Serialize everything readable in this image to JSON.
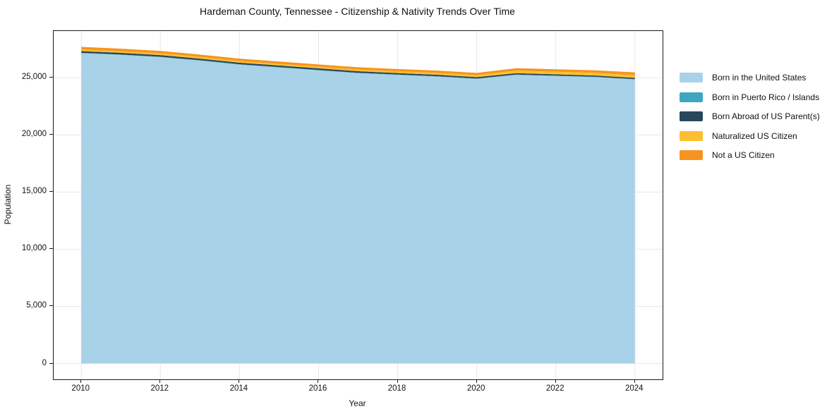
{
  "chart_data": {
    "type": "area",
    "stacked": true,
    "title": "Hardeman County, Tennessee - Citizenship & Nativity Trends Over Time",
    "xlabel": "Year",
    "ylabel": "Population",
    "x": [
      2010,
      2011,
      2012,
      2013,
      2014,
      2015,
      2016,
      2017,
      2018,
      2019,
      2020,
      2021,
      2022,
      2023,
      2024
    ],
    "series": [
      {
        "name": "Born in the United States",
        "color": "#a8d2e8",
        "values": [
          27150,
          27000,
          26800,
          26500,
          26150,
          25900,
          25650,
          25400,
          25250,
          25100,
          24900,
          25250,
          25150,
          25050,
          24850
        ]
      },
      {
        "name": "Born in Puerto Rico / Islands",
        "color": "#3da6c2",
        "values": [
          30,
          30,
          30,
          30,
          30,
          30,
          30,
          30,
          30,
          30,
          30,
          30,
          30,
          30,
          30
        ]
      },
      {
        "name": "Born Abroad of US Parent(s)",
        "color": "#29475c",
        "values": [
          150,
          150,
          150,
          140,
          140,
          140,
          140,
          140,
          130,
          130,
          120,
          120,
          120,
          110,
          110
        ]
      },
      {
        "name": "Naturalized US Citizen",
        "color": "#fcc02e",
        "values": [
          140,
          140,
          150,
          150,
          140,
          140,
          140,
          140,
          150,
          160,
          170,
          220,
          220,
          230,
          230
        ]
      },
      {
        "name": "Not a US Citizen",
        "color": "#f7941f",
        "values": [
          230,
          220,
          215,
          210,
          210,
          205,
          205,
          205,
          205,
          205,
          205,
          215,
          220,
          230,
          250
        ]
      }
    ],
    "xticks": {
      "values": [
        2010,
        2012,
        2014,
        2016,
        2018,
        2020,
        2022,
        2024
      ],
      "labels": [
        "2010",
        "2012",
        "2014",
        "2016",
        "2018",
        "2020",
        "2022",
        "2024"
      ]
    },
    "yticks": {
      "values": [
        0,
        5000,
        10000,
        15000,
        20000,
        25000
      ],
      "labels": [
        "0",
        "5,000",
        "10,000",
        "15,000",
        "20,000",
        "25,000"
      ]
    },
    "xlim": [
      2009.3,
      2024.7
    ],
    "ylim": [
      -1385,
      29085
    ],
    "grid": true,
    "grid_color": "#e7e7e7",
    "legend_position": "right"
  }
}
